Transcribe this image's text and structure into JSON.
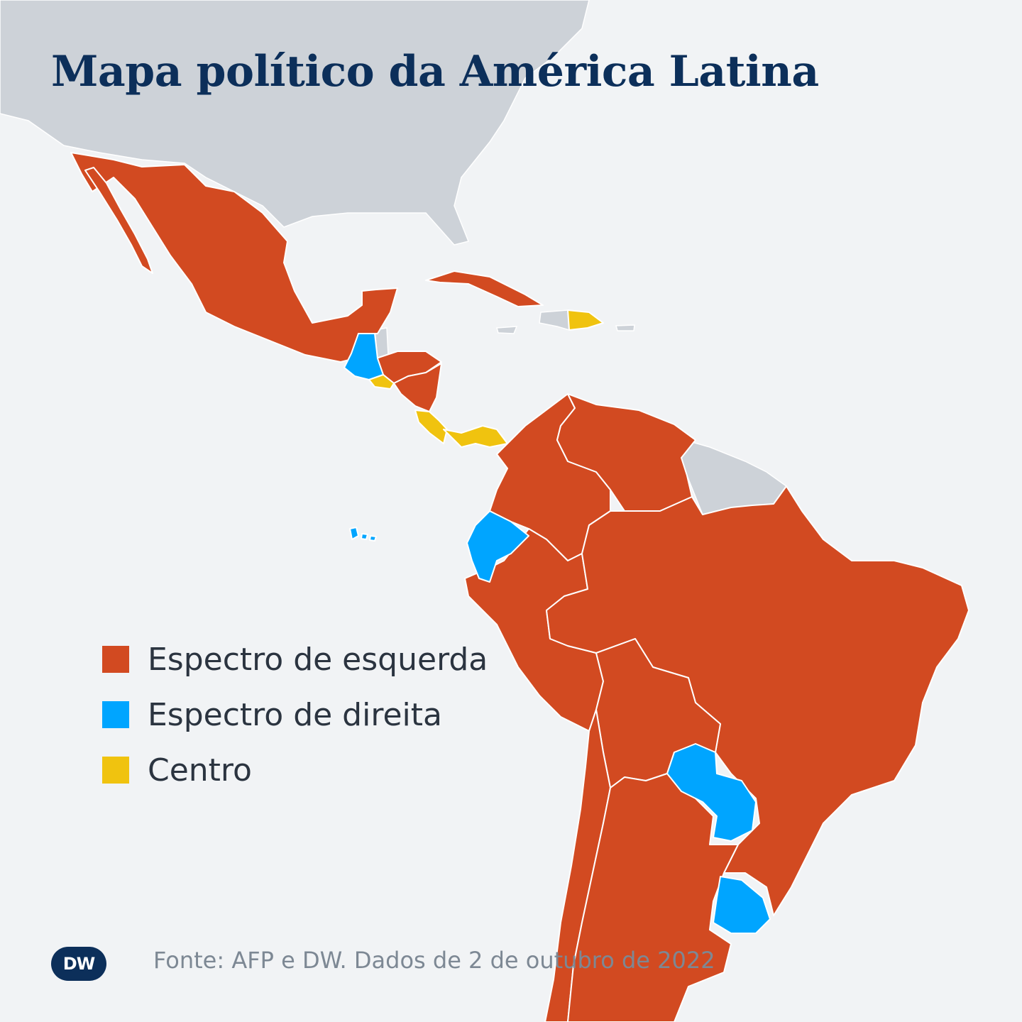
{
  "title": "Mapa político da América Latina",
  "legend": [
    {
      "label": "Espectro de esquerda",
      "color": "#d24a21"
    },
    {
      "label": "Espectro de direita",
      "color": "#00a5ff"
    },
    {
      "label": "Centro",
      "color": "#f0c30f"
    }
  ],
  "countries": [
    {
      "name": "México",
      "category": "Espectro de esquerda"
    },
    {
      "name": "Guatemala",
      "category": "Espectro de direita"
    },
    {
      "name": "El Salvador",
      "category": "Centro"
    },
    {
      "name": "Honduras",
      "category": "Espectro de esquerda"
    },
    {
      "name": "Nicarágua",
      "category": "Espectro de esquerda"
    },
    {
      "name": "Costa Rica",
      "category": "Centro"
    },
    {
      "name": "Panamá",
      "category": "Centro"
    },
    {
      "name": "Cuba",
      "category": "Espectro de esquerda"
    },
    {
      "name": "República Dominicana",
      "category": "Centro"
    },
    {
      "name": "Colômbia",
      "category": "Espectro de esquerda"
    },
    {
      "name": "Venezuela",
      "category": "Espectro de esquerda"
    },
    {
      "name": "Equador",
      "category": "Espectro de direita"
    },
    {
      "name": "Peru",
      "category": "Espectro de esquerda"
    },
    {
      "name": "Bolívia",
      "category": "Espectro de esquerda"
    },
    {
      "name": "Brasil",
      "category": "Espectro de esquerda"
    },
    {
      "name": "Paraguai",
      "category": "Espectro de direita"
    },
    {
      "name": "Uruguai",
      "category": "Espectro de direita"
    },
    {
      "name": "Chile",
      "category": "Espectro de esquerda"
    },
    {
      "name": "Argentina",
      "category": "Espectro de esquerda"
    }
  ],
  "colors": {
    "ocean": "#f1f3f5",
    "land_other": "#cdd2d8",
    "border": "#ffffff",
    "title": "#0c2f5a"
  },
  "source": "Fonte: AFP e DW. Dados de 2 de outubro de 2022",
  "logo": "DW"
}
